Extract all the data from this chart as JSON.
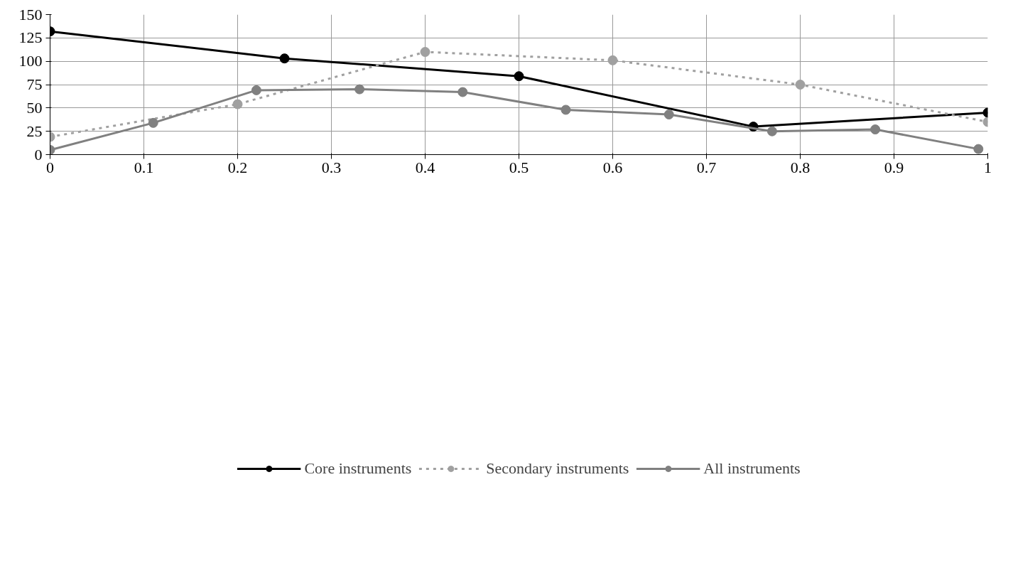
{
  "chart_data": {
    "type": "line",
    "xlim": [
      0,
      1
    ],
    "ylim": [
      0,
      150
    ],
    "xticks": [
      0,
      0.1,
      0.2,
      0.3,
      0.4,
      0.5,
      0.6,
      0.7,
      0.8,
      0.9,
      1
    ],
    "yticks": [
      0,
      25,
      50,
      75,
      100,
      125,
      150
    ],
    "grid": true,
    "legend": "bottom",
    "marker": "circle",
    "series": [
      {
        "name": "Core instruments",
        "color": "#000000",
        "line_style": "solid",
        "x": [
          0,
          0.25,
          0.5,
          0.75,
          1
        ],
        "values": [
          132,
          103,
          84,
          30,
          45
        ]
      },
      {
        "name": "Secondary instruments",
        "color": "#a0a0a0",
        "line_style": "dashed",
        "x": [
          0,
          0.2,
          0.4,
          0.6,
          0.8,
          1
        ],
        "values": [
          19,
          54,
          110,
          101,
          75,
          35
        ]
      },
      {
        "name": "All instruments",
        "color": "#808080",
        "line_style": "solid",
        "x": [
          0,
          0.11,
          0.22,
          0.33,
          0.44,
          0.55,
          0.66,
          0.77,
          0.88,
          0.99
        ],
        "values": [
          5,
          34,
          69,
          70,
          67,
          48,
          43,
          25,
          27,
          6
        ]
      }
    ]
  }
}
